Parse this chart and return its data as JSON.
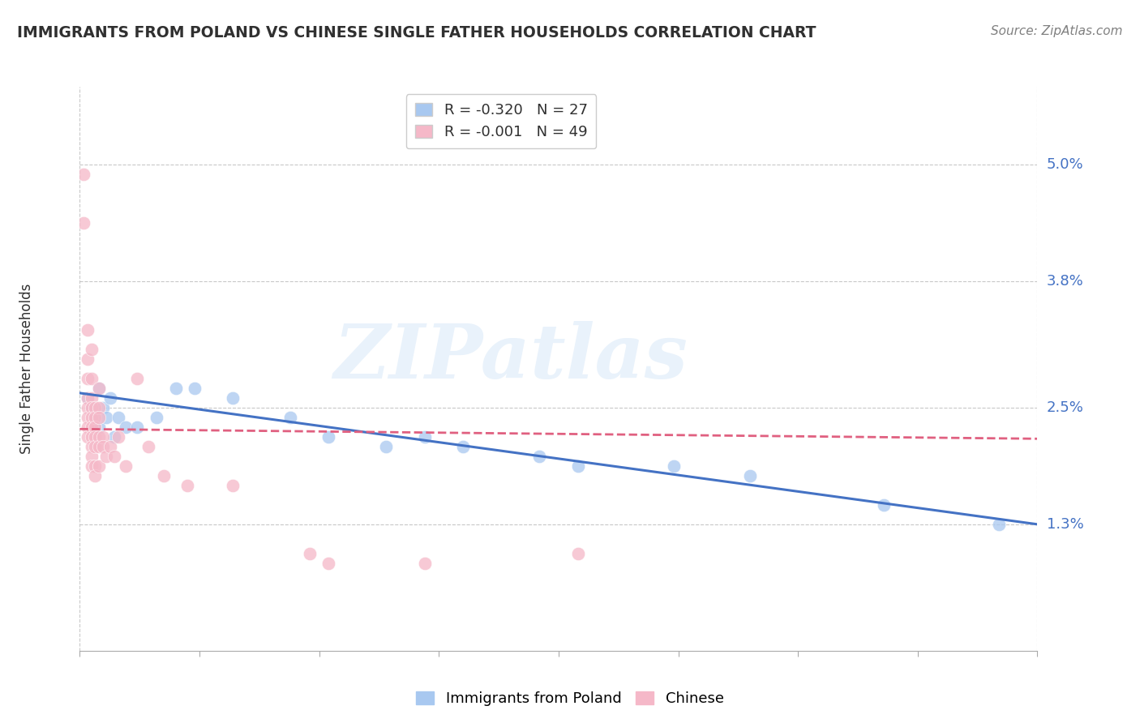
{
  "title": "IMMIGRANTS FROM POLAND VS CHINESE SINGLE FATHER HOUSEHOLDS CORRELATION CHART",
  "source": "Source: ZipAtlas.com",
  "ylabel": "Single Father Households",
  "ytick_labels": [
    "5.0%",
    "3.8%",
    "2.5%",
    "1.3%"
  ],
  "ytick_values": [
    0.05,
    0.038,
    0.025,
    0.013
  ],
  "xlim": [
    0.0,
    0.25
  ],
  "ylim": [
    0.0,
    0.058
  ],
  "legend_entries": [
    {
      "label": "R = -0.320   N = 27",
      "color": "#a8c8f0"
    },
    {
      "label": "R = -0.001   N = 49",
      "color": "#f5b8c8"
    }
  ],
  "poland_points": [
    [
      0.002,
      0.026
    ],
    [
      0.003,
      0.025
    ],
    [
      0.004,
      0.024
    ],
    [
      0.005,
      0.023
    ],
    [
      0.005,
      0.027
    ],
    [
      0.006,
      0.025
    ],
    [
      0.007,
      0.024
    ],
    [
      0.008,
      0.026
    ],
    [
      0.009,
      0.022
    ],
    [
      0.01,
      0.024
    ],
    [
      0.012,
      0.023
    ],
    [
      0.015,
      0.023
    ],
    [
      0.02,
      0.024
    ],
    [
      0.025,
      0.027
    ],
    [
      0.03,
      0.027
    ],
    [
      0.04,
      0.026
    ],
    [
      0.055,
      0.024
    ],
    [
      0.065,
      0.022
    ],
    [
      0.08,
      0.021
    ],
    [
      0.09,
      0.022
    ],
    [
      0.1,
      0.021
    ],
    [
      0.12,
      0.02
    ],
    [
      0.13,
      0.019
    ],
    [
      0.155,
      0.019
    ],
    [
      0.175,
      0.018
    ],
    [
      0.21,
      0.015
    ],
    [
      0.24,
      0.013
    ]
  ],
  "chinese_points": [
    [
      0.001,
      0.049
    ],
    [
      0.001,
      0.044
    ],
    [
      0.002,
      0.033
    ],
    [
      0.002,
      0.03
    ],
    [
      0.002,
      0.028
    ],
    [
      0.002,
      0.026
    ],
    [
      0.002,
      0.025
    ],
    [
      0.002,
      0.024
    ],
    [
      0.002,
      0.023
    ],
    [
      0.002,
      0.022
    ],
    [
      0.003,
      0.031
    ],
    [
      0.003,
      0.028
    ],
    [
      0.003,
      0.026
    ],
    [
      0.003,
      0.025
    ],
    [
      0.003,
      0.024
    ],
    [
      0.003,
      0.023
    ],
    [
      0.003,
      0.022
    ],
    [
      0.003,
      0.021
    ],
    [
      0.003,
      0.02
    ],
    [
      0.003,
      0.019
    ],
    [
      0.004,
      0.025
    ],
    [
      0.004,
      0.024
    ],
    [
      0.004,
      0.023
    ],
    [
      0.004,
      0.022
    ],
    [
      0.004,
      0.021
    ],
    [
      0.004,
      0.019
    ],
    [
      0.004,
      0.018
    ],
    [
      0.005,
      0.027
    ],
    [
      0.005,
      0.025
    ],
    [
      0.005,
      0.024
    ],
    [
      0.005,
      0.022
    ],
    [
      0.005,
      0.021
    ],
    [
      0.005,
      0.019
    ],
    [
      0.006,
      0.022
    ],
    [
      0.006,
      0.021
    ],
    [
      0.007,
      0.02
    ],
    [
      0.008,
      0.021
    ],
    [
      0.009,
      0.02
    ],
    [
      0.01,
      0.022
    ],
    [
      0.012,
      0.019
    ],
    [
      0.015,
      0.028
    ],
    [
      0.018,
      0.021
    ],
    [
      0.022,
      0.018
    ],
    [
      0.028,
      0.017
    ],
    [
      0.04,
      0.017
    ],
    [
      0.06,
      0.01
    ],
    [
      0.065,
      0.009
    ],
    [
      0.09,
      0.009
    ],
    [
      0.13,
      0.01
    ]
  ],
  "poland_line_x": [
    0.0,
    0.25
  ],
  "poland_line_y": [
    0.0265,
    0.013
  ],
  "chinese_line_x": [
    0.0,
    0.25
  ],
  "chinese_line_y": [
    0.0228,
    0.0218
  ],
  "poland_color": "#a8c8f0",
  "chinese_color": "#f5b8c8",
  "poland_line_color": "#4472c4",
  "chinese_line_color": "#e06080",
  "chinese_line_style": "--",
  "watermark_text": "ZIPatlas",
  "background_color": "#ffffff",
  "grid_color": "#c8c8c8",
  "ytick_color": "#4472c4",
  "xtick_color": "#4472c4",
  "title_color": "#303030",
  "source_color": "#808080"
}
